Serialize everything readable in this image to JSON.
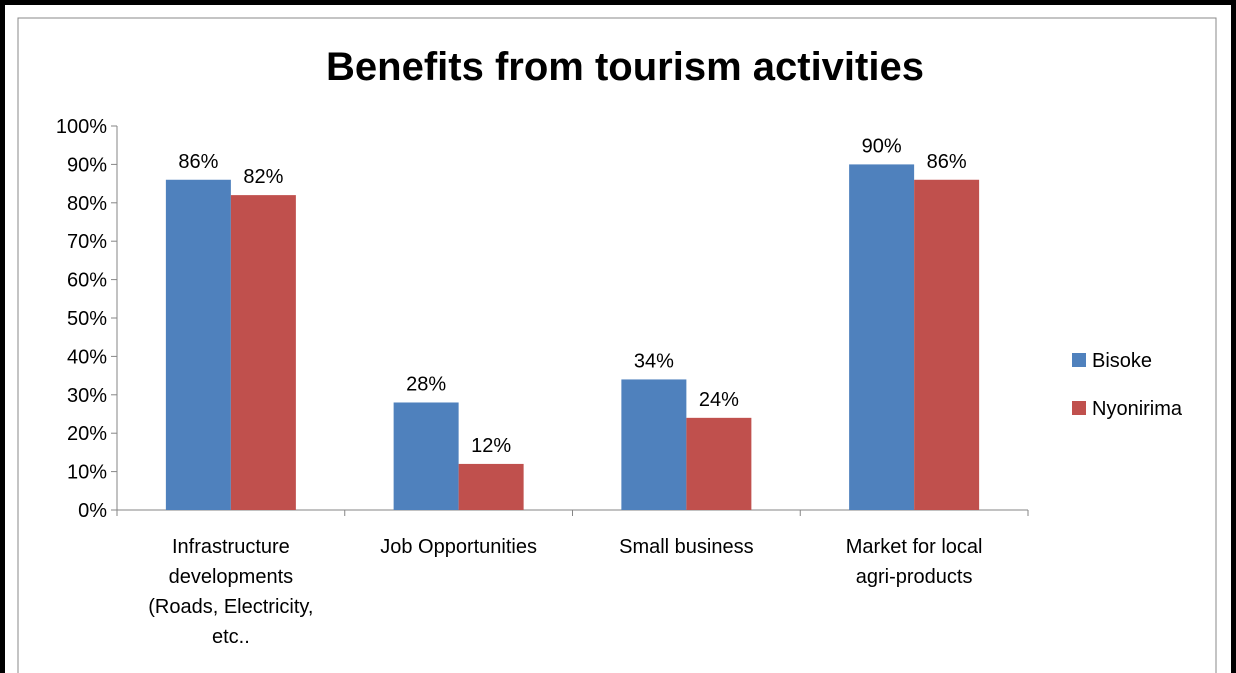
{
  "chart_data": {
    "type": "bar",
    "title": "Benefits from tourism activities",
    "categories": [
      [
        "Infrastructure",
        "developments",
        "(Roads, Electricity,",
        "etc.."
      ],
      [
        "Job Opportunities"
      ],
      [
        "Small business"
      ],
      [
        "Market for local",
        "agri-products"
      ]
    ],
    "series": [
      {
        "name": "Bisoke",
        "color": "#4f81bd",
        "values": [
          86,
          28,
          34,
          90
        ],
        "labels": [
          "86%",
          "28%",
          "34%",
          "90%"
        ]
      },
      {
        "name": "Nyonirima",
        "color": "#c0504d",
        "values": [
          82,
          12,
          24,
          86
        ],
        "labels": [
          "82%",
          "12%",
          "24%",
          "86%"
        ]
      }
    ],
    "yticks": [
      "0%",
      "10%",
      "20%",
      "30%",
      "40%",
      "50%",
      "60%",
      "70%",
      "80%",
      "90%",
      "100%"
    ],
    "ylim": [
      0,
      100
    ],
    "grid": false,
    "legend": "right",
    "xlabel": "",
    "ylabel": ""
  }
}
